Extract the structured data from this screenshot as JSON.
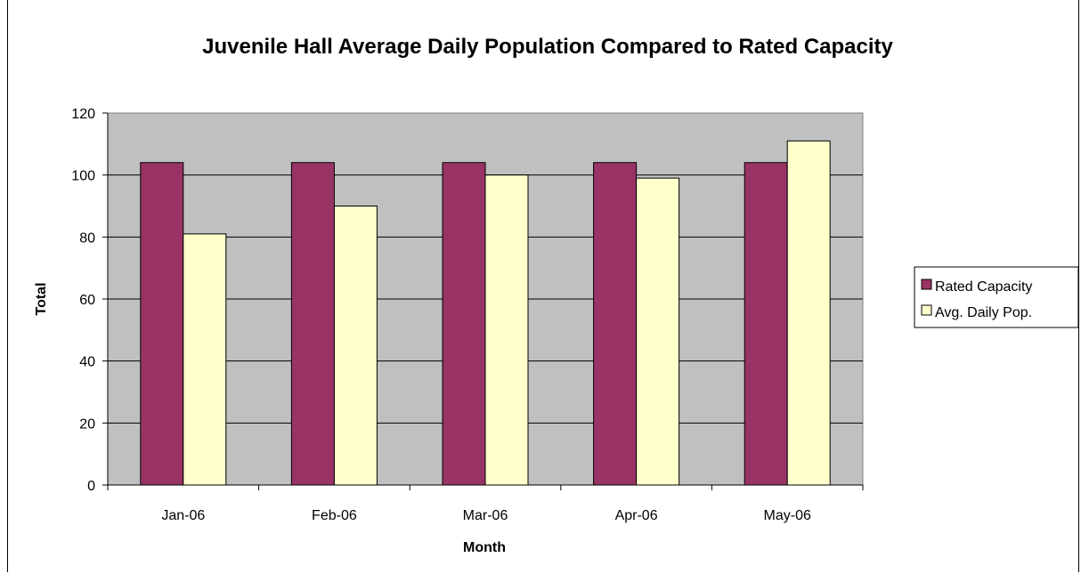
{
  "chart_data": {
    "type": "bar",
    "title": "Juvenile Hall Average Daily Population Compared to Rated Capacity",
    "xlabel": "Month",
    "ylabel": "Total",
    "categories": [
      "Jan-06",
      "Feb-06",
      "Mar-06",
      "Apr-06",
      "May-06"
    ],
    "series": [
      {
        "name": "Rated Capacity",
        "values": [
          104,
          104,
          104,
          104,
          104
        ],
        "color": "#993366"
      },
      {
        "name": "Avg. Daily Pop.",
        "values": [
          81,
          90,
          100,
          99,
          111
        ],
        "color": "#FFFFCC"
      }
    ],
    "ylim": [
      0,
      120
    ],
    "yticks": [
      0,
      20,
      40,
      60,
      80,
      100,
      120
    ],
    "grid": true,
    "plot_background": "#C0C0C0",
    "legend": "right"
  }
}
